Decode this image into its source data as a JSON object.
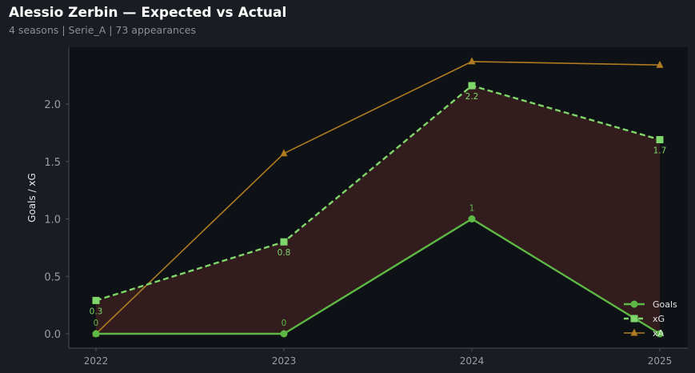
{
  "title": "Alessio Zerbin — Expected vs Actual",
  "subtitle": "4 seasons | Serie_A | 73 appearances",
  "colors": {
    "page_bg": "#191c22",
    "plot_bg": "#0e1116",
    "goals": "#5db845",
    "xg": "#7fd66a",
    "xa": "#b07c22",
    "fill": "#3a1f20",
    "axis": "#4a4e56",
    "tick_text": "#9a9ea6"
  },
  "chart_data": {
    "type": "line",
    "title": "Alessio Zerbin — Expected vs Actual",
    "subtitle": "4 seasons | Serie_A | 73 appearances",
    "xlabel": "",
    "ylabel": "Goals / xG",
    "x": [
      "2022",
      "2023",
      "2024",
      "2025"
    ],
    "ylim": [
      -0.1,
      2.5
    ],
    "yticks": [
      "0.0",
      "0.5",
      "1.0",
      "1.5",
      "2.0"
    ],
    "ytick_values": [
      0,
      0.5,
      1.0,
      1.5,
      2.0
    ],
    "grid": false,
    "legend": "bottom-right",
    "series": [
      {
        "name": "Goals",
        "values": [
          0,
          0,
          1,
          0
        ],
        "labels": [
          "0",
          "0",
          "1",
          ""
        ],
        "style": "solid",
        "marker": "circle"
      },
      {
        "name": "xG",
        "values": [
          0.29,
          0.8,
          2.16,
          1.69
        ],
        "labels": [
          "0.3",
          "0.8",
          "2.2",
          "1.7"
        ],
        "style": "dashed",
        "marker": "square"
      },
      {
        "name": "xA",
        "values": [
          0,
          1.57,
          2.37,
          2.34
        ],
        "style": "solid",
        "marker": "triangle"
      }
    ],
    "shaded_between": [
      "Goals",
      "xG"
    ]
  }
}
